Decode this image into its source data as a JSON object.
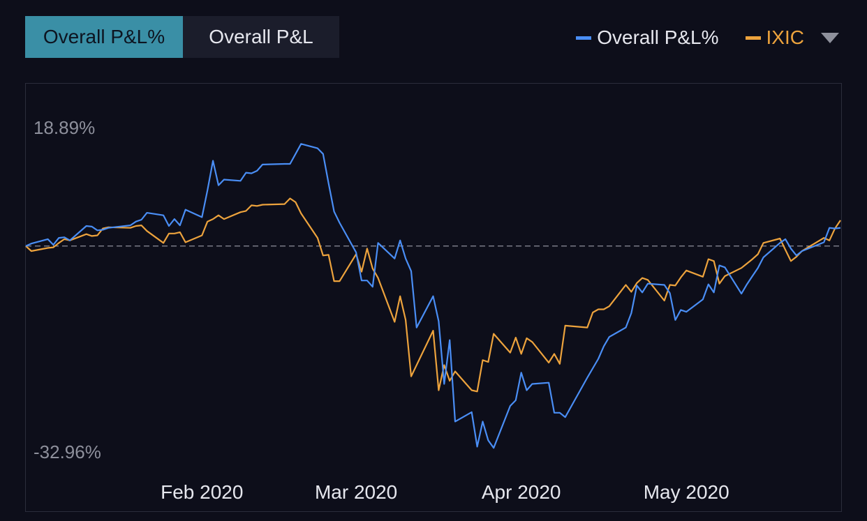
{
  "toggle": {
    "active_label": "Overall P&L%",
    "inactive_label": "Overall P&L"
  },
  "legend": {
    "items": [
      {
        "label": "Overall P&L%",
        "color": "#4a8ef5"
      },
      {
        "label": "IXIC",
        "color": "#eda33d"
      }
    ],
    "dropdown_icon": "caret-down-icon"
  },
  "chart_data": {
    "type": "line",
    "ylim": [
      -32.96,
      18.89
    ],
    "y_tick_labels": [
      "18.89%",
      "-32.96%"
    ],
    "x_tick_labels": [
      "Feb 2020",
      "Mar 2020",
      "Apr 2020",
      "May 2020"
    ],
    "x_start": "2020-01-02",
    "x_end": "2020-05-29",
    "x_ticks": [
      "2020-02-03",
      "2020-03-02",
      "2020-04-01",
      "2020-05-01"
    ],
    "zero_line": 0,
    "grid": false,
    "legend": "top-right",
    "series": [
      {
        "name": "Overall P&L%",
        "color": "#4a8ef5",
        "points": [
          [
            "2020-01-02",
            0.0
          ],
          [
            "2020-01-03",
            0.4
          ],
          [
            "2020-01-06",
            1.1
          ],
          [
            "2020-01-07",
            0.2
          ],
          [
            "2020-01-08",
            1.3
          ],
          [
            "2020-01-09",
            1.4
          ],
          [
            "2020-01-10",
            0.9
          ],
          [
            "2020-01-13",
            3.2
          ],
          [
            "2020-01-14",
            3.1
          ],
          [
            "2020-01-15",
            2.5
          ],
          [
            "2020-01-16",
            2.6
          ],
          [
            "2020-01-17",
            2.9
          ],
          [
            "2020-01-21",
            3.3
          ],
          [
            "2020-01-22",
            3.9
          ],
          [
            "2020-01-23",
            4.2
          ],
          [
            "2020-01-24",
            5.3
          ],
          [
            "2020-01-27",
            4.9
          ],
          [
            "2020-01-28",
            3.2
          ],
          [
            "2020-01-29",
            4.3
          ],
          [
            "2020-01-30",
            3.3
          ],
          [
            "2020-01-31",
            5.8
          ],
          [
            "2020-02-03",
            4.6
          ],
          [
            "2020-02-04",
            8.9
          ],
          [
            "2020-02-05",
            13.6
          ],
          [
            "2020-02-06",
            9.7
          ],
          [
            "2020-02-07",
            10.6
          ],
          [
            "2020-02-10",
            10.4
          ],
          [
            "2020-02-11",
            11.7
          ],
          [
            "2020-02-12",
            11.6
          ],
          [
            "2020-02-13",
            12.0
          ],
          [
            "2020-02-14",
            13.0
          ],
          [
            "2020-02-18",
            13.1
          ],
          [
            "2020-02-19",
            13.1
          ],
          [
            "2020-02-20",
            14.7
          ],
          [
            "2020-02-21",
            16.3
          ],
          [
            "2020-02-24",
            15.6
          ],
          [
            "2020-02-25",
            14.7
          ],
          [
            "2020-02-26",
            10.0
          ],
          [
            "2020-02-27",
            5.5
          ],
          [
            "2020-02-28",
            3.7
          ],
          [
            "2020-03-02",
            -1.0
          ],
          [
            "2020-03-03",
            -5.5
          ],
          [
            "2020-03-04",
            -5.5
          ],
          [
            "2020-03-05",
            -6.5
          ],
          [
            "2020-03-06",
            0.5
          ],
          [
            "2020-03-09",
            -2.0
          ],
          [
            "2020-03-10",
            0.9
          ],
          [
            "2020-03-11",
            -2.0
          ],
          [
            "2020-03-12",
            -4.0
          ],
          [
            "2020-03-13",
            -13.0
          ],
          [
            "2020-03-16",
            -8.0
          ],
          [
            "2020-03-17",
            -12.0
          ],
          [
            "2020-03-18",
            -22.0
          ],
          [
            "2020-03-19",
            -15.0
          ],
          [
            "2020-03-20",
            -28.0
          ],
          [
            "2020-03-23",
            -26.5
          ],
          [
            "2020-03-24",
            -32.0
          ],
          [
            "2020-03-25",
            -28.0
          ],
          [
            "2020-03-26",
            -31.0
          ],
          [
            "2020-03-27",
            -32.2
          ],
          [
            "2020-03-30",
            -25.5
          ],
          [
            "2020-03-31",
            -24.6
          ],
          [
            "2020-04-01",
            -20.2
          ],
          [
            "2020-04-02",
            -23.0
          ],
          [
            "2020-04-03",
            -22.0
          ],
          [
            "2020-04-06",
            -21.8
          ],
          [
            "2020-04-07",
            -26.6
          ],
          [
            "2020-04-08",
            -26.6
          ],
          [
            "2020-04-09",
            -27.3
          ],
          [
            "2020-04-13",
            -21.0
          ],
          [
            "2020-04-14",
            -19.5
          ],
          [
            "2020-04-15",
            -18.0
          ],
          [
            "2020-04-16",
            -16.0
          ],
          [
            "2020-04-17",
            -14.5
          ],
          [
            "2020-04-20",
            -13.0
          ],
          [
            "2020-04-21",
            -10.7
          ],
          [
            "2020-04-22",
            -6.3
          ],
          [
            "2020-04-23",
            -7.4
          ],
          [
            "2020-04-24",
            -6.0
          ],
          [
            "2020-04-27",
            -6.2
          ],
          [
            "2020-04-28",
            -7.5
          ],
          [
            "2020-04-29",
            -11.8
          ],
          [
            "2020-04-30",
            -10.2
          ],
          [
            "2020-05-01",
            -10.5
          ],
          [
            "2020-05-04",
            -8.5
          ],
          [
            "2020-05-05",
            -6.1
          ],
          [
            "2020-05-06",
            -7.4
          ],
          [
            "2020-05-07",
            -3.1
          ],
          [
            "2020-05-08",
            -3.4
          ],
          [
            "2020-05-11",
            -7.6
          ],
          [
            "2020-05-12",
            -6.1
          ],
          [
            "2020-05-13",
            -4.8
          ],
          [
            "2020-05-14",
            -3.5
          ],
          [
            "2020-05-15",
            -1.8
          ],
          [
            "2020-05-18",
            0.5
          ],
          [
            "2020-05-19",
            1.1
          ],
          [
            "2020-05-20",
            -0.4
          ],
          [
            "2020-05-21",
            -1.5
          ],
          [
            "2020-05-22",
            -0.8
          ],
          [
            "2020-05-26",
            0.6
          ],
          [
            "2020-05-27",
            2.9
          ],
          [
            "2020-05-28",
            2.8
          ],
          [
            "2020-05-29",
            2.9
          ]
        ]
      },
      {
        "name": "IXIC",
        "color": "#eda33d",
        "points": [
          [
            "2020-01-02",
            0.0
          ],
          [
            "2020-01-03",
            -0.8
          ],
          [
            "2020-01-06",
            -0.3
          ],
          [
            "2020-01-07",
            -0.2
          ],
          [
            "2020-01-08",
            0.5
          ],
          [
            "2020-01-09",
            1.1
          ],
          [
            "2020-01-10",
            0.9
          ],
          [
            "2020-01-13",
            1.9
          ],
          [
            "2020-01-14",
            1.6
          ],
          [
            "2020-01-15",
            1.7
          ],
          [
            "2020-01-16",
            2.8
          ],
          [
            "2020-01-17",
            3.0
          ],
          [
            "2020-01-21",
            2.9
          ],
          [
            "2020-01-22",
            3.2
          ],
          [
            "2020-01-23",
            3.3
          ],
          [
            "2020-01-24",
            2.4
          ],
          [
            "2020-01-27",
            0.5
          ],
          [
            "2020-01-28",
            2.0
          ],
          [
            "2020-01-29",
            2.0
          ],
          [
            "2020-01-30",
            2.2
          ],
          [
            "2020-01-31",
            0.6
          ],
          [
            "2020-02-03",
            1.7
          ],
          [
            "2020-02-04",
            3.9
          ],
          [
            "2020-02-05",
            4.3
          ],
          [
            "2020-02-06",
            4.9
          ],
          [
            "2020-02-07",
            4.3
          ],
          [
            "2020-02-10",
            5.4
          ],
          [
            "2020-02-11",
            5.6
          ],
          [
            "2020-02-12",
            6.5
          ],
          [
            "2020-02-13",
            6.4
          ],
          [
            "2020-02-14",
            6.6
          ],
          [
            "2020-02-18",
            6.7
          ],
          [
            "2020-02-19",
            7.6
          ],
          [
            "2020-02-20",
            7.0
          ],
          [
            "2020-02-21",
            5.2
          ],
          [
            "2020-02-24",
            1.3
          ],
          [
            "2020-02-25",
            -1.5
          ],
          [
            "2020-02-26",
            -1.4
          ],
          [
            "2020-02-27",
            -5.6
          ],
          [
            "2020-02-28",
            -5.6
          ],
          [
            "2020-03-02",
            -1.3
          ],
          [
            "2020-03-03",
            -4.1
          ],
          [
            "2020-03-04",
            -0.4
          ],
          [
            "2020-03-05",
            -3.6
          ],
          [
            "2020-03-06",
            -5.1
          ],
          [
            "2020-03-09",
            -12.1
          ],
          [
            "2020-03-10",
            -8.0
          ],
          [
            "2020-03-11",
            -11.8
          ],
          [
            "2020-03-12",
            -20.8
          ],
          [
            "2020-03-16",
            -13.5
          ],
          [
            "2020-03-17",
            -23.0
          ],
          [
            "2020-03-18",
            -19.0
          ],
          [
            "2020-03-19",
            -21.5
          ],
          [
            "2020-03-20",
            -20.0
          ],
          [
            "2020-03-23",
            -23.0
          ],
          [
            "2020-03-24",
            -23.2
          ],
          [
            "2020-03-25",
            -18.2
          ],
          [
            "2020-03-26",
            -18.5
          ],
          [
            "2020-03-27",
            -14.0
          ],
          [
            "2020-03-30",
            -17.0
          ],
          [
            "2020-03-31",
            -14.6
          ],
          [
            "2020-04-01",
            -17.2
          ],
          [
            "2020-04-02",
            -14.7
          ],
          [
            "2020-04-03",
            -15.3
          ],
          [
            "2020-04-06",
            -18.6
          ],
          [
            "2020-04-07",
            -17.2
          ],
          [
            "2020-04-08",
            -18.8
          ],
          [
            "2020-04-09",
            -12.7
          ],
          [
            "2020-04-13",
            -13.0
          ],
          [
            "2020-04-14",
            -10.6
          ],
          [
            "2020-04-15",
            -10.1
          ],
          [
            "2020-04-16",
            -10.1
          ],
          [
            "2020-04-17",
            -9.6
          ],
          [
            "2020-04-20",
            -6.2
          ],
          [
            "2020-04-21",
            -7.3
          ],
          [
            "2020-04-22",
            -5.9
          ],
          [
            "2020-04-23",
            -5.1
          ],
          [
            "2020-04-24",
            -5.4
          ],
          [
            "2020-04-27",
            -8.7
          ],
          [
            "2020-04-28",
            -6.2
          ],
          [
            "2020-04-29",
            -6.3
          ],
          [
            "2020-04-30",
            -5.0
          ],
          [
            "2020-05-01",
            -3.9
          ],
          [
            "2020-05-04",
            -4.9
          ],
          [
            "2020-05-05",
            -2.1
          ],
          [
            "2020-05-06",
            -2.4
          ],
          [
            "2020-05-07",
            -6.0
          ],
          [
            "2020-05-08",
            -4.8
          ],
          [
            "2020-05-11",
            -3.5
          ],
          [
            "2020-05-12",
            -2.8
          ],
          [
            "2020-05-13",
            -2.1
          ],
          [
            "2020-05-14",
            -1.3
          ],
          [
            "2020-05-15",
            0.5
          ],
          [
            "2020-05-18",
            1.2
          ],
          [
            "2020-05-19",
            -0.6
          ],
          [
            "2020-05-20",
            -2.4
          ],
          [
            "2020-05-21",
            -1.7
          ],
          [
            "2020-05-22",
            -0.8
          ],
          [
            "2020-05-26",
            1.3
          ],
          [
            "2020-05-27",
            0.9
          ],
          [
            "2020-05-28",
            2.8
          ],
          [
            "2020-05-29",
            4.1
          ]
        ]
      }
    ]
  }
}
